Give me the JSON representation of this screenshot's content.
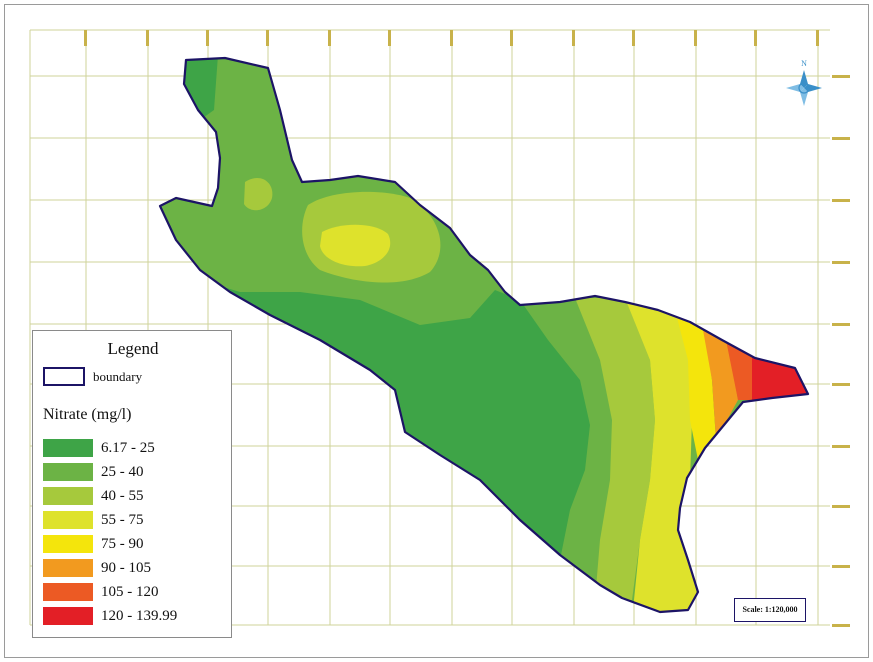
{
  "legend": {
    "title": "Legend",
    "boundary_label": "boundary",
    "nitrate_title": "Nitrate (mg/l)",
    "classes": [
      {
        "label": "6.17 - 25",
        "color": "#3ea447"
      },
      {
        "label": "25 - 40",
        "color": "#6cb345"
      },
      {
        "label": "40 - 55",
        "color": "#a6c93c"
      },
      {
        "label": "55 - 75",
        "color": "#dee22c"
      },
      {
        "label": "75 - 90",
        "color": "#f4e50c"
      },
      {
        "label": "90 - 105",
        "color": "#f29a1f"
      },
      {
        "label": "105 - 120",
        "color": "#ec5a24"
      },
      {
        "label": "120 - 139.99",
        "color": "#e31f26"
      }
    ]
  },
  "map": {
    "boundary_color": "#1c1466",
    "grid_color": "#cfd39a",
    "north_label": "N"
  },
  "scale": {
    "text": "Scale: 1:120,000"
  }
}
